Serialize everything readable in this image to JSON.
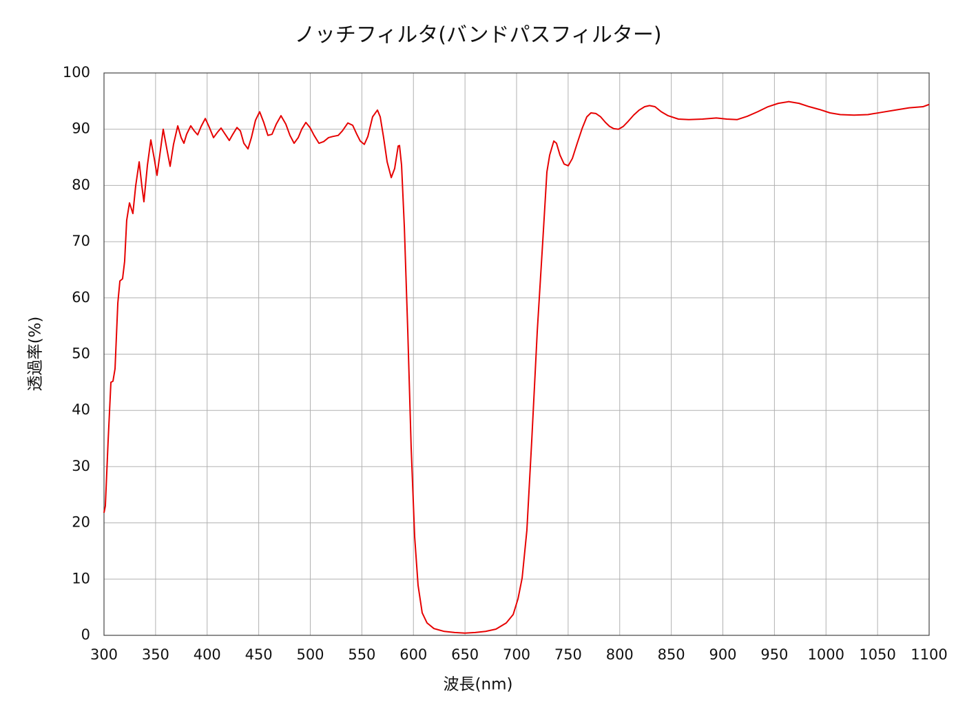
{
  "chart_data": {
    "type": "line",
    "title": "ノッチフィルタ(バンドパスフィルター)",
    "x_label": "波長(nm)",
    "y_label": "透過率(%)",
    "xlim": [
      300,
      1100
    ],
    "ylim": [
      0,
      100
    ],
    "xticks": [
      300,
      350,
      400,
      450,
      500,
      550,
      600,
      650,
      700,
      750,
      800,
      850,
      900,
      950,
      1000,
      1050,
      1100
    ],
    "yticks": [
      0,
      10,
      20,
      30,
      40,
      50,
      60,
      70,
      80,
      90,
      100
    ],
    "grid": true,
    "series": [
      {
        "color": "#e60000",
        "x": [
          300.0,
          301.3,
          304.0,
          306.7,
          308.7,
          310.7,
          313.4,
          315.4,
          318.0,
          320.0,
          322.0,
          324.7,
          328.0,
          330.7,
          334.1,
          336.7,
          338.7,
          342.1,
          345.4,
          348.7,
          351.4,
          354.1,
          357.4,
          361.4,
          364.1,
          367.4,
          371.5,
          374.8,
          377.5,
          380.1,
          384.1,
          387.5,
          390.8,
          394.2,
          398.2,
          402.2,
          406.2,
          410.2,
          413.5,
          417.5,
          421.5,
          424.9,
          428.9,
          432.2,
          435.6,
          439.6,
          442.9,
          446.9,
          450.9,
          454.9,
          458.9,
          462.9,
          467.0,
          471.6,
          476.3,
          480.3,
          484.3,
          488.3,
          491.7,
          495.7,
          499.7,
          503.7,
          508.4,
          513.0,
          517.7,
          521.7,
          527.1,
          531.1,
          536.4,
          541.1,
          545.1,
          548.4,
          552.4,
          555.8,
          560.4,
          565.1,
          567.8,
          571.1,
          574.5,
          578.5,
          581.8,
          585.2,
          586.5,
          588.5,
          591.2,
          594.5,
          597.8,
          601.2,
          604.5,
          608.5,
          613.2,
          619.9,
          629.9,
          639.9,
          649.9,
          660.0,
          670.0,
          680.0,
          690.0,
          696.7,
          701.4,
          705.4,
          710.0,
          714.7,
          720.1,
          725.4,
          729.4,
          732.1,
          736.1,
          738.7,
          742.1,
          746.1,
          750.1,
          754.1,
          758.8,
          763.5,
          768.1,
          772.1,
          776.8,
          781.5,
          786.2,
          790.2,
          794.2,
          798.8,
          803.5,
          808.2,
          813.5,
          818.9,
          824.2,
          828.9,
          834.2,
          840.3,
          846.9,
          856.9,
          867.0,
          880.3,
          893.7,
          903.7,
          913.7,
          923.7,
          933.7,
          943.8,
          953.8,
          963.8,
          973.8,
          983.8,
          993.8,
          1003.9,
          1013.9,
          1027.2,
          1040.6,
          1053.9,
          1067.3,
          1080.7,
          1094.0,
          1100.0
        ],
        "values": [
          21.8,
          23.0,
          34.6,
          45.0,
          45.2,
          47.4,
          59.1,
          63.0,
          63.4,
          66.5,
          73.8,
          76.9,
          75.0,
          79.9,
          84.2,
          79.9,
          77.1,
          83.6,
          88.1,
          84.8,
          81.8,
          85.4,
          90.0,
          86.0,
          83.4,
          87.3,
          90.6,
          88.5,
          87.5,
          89.1,
          90.6,
          89.7,
          89.0,
          90.5,
          91.9,
          90.3,
          88.5,
          89.5,
          90.2,
          89.1,
          88.0,
          89.1,
          90.3,
          89.7,
          87.5,
          86.5,
          88.5,
          91.6,
          93.1,
          91.2,
          88.9,
          89.1,
          90.9,
          92.4,
          90.9,
          88.9,
          87.5,
          88.5,
          90.0,
          91.2,
          90.3,
          88.9,
          87.5,
          87.8,
          88.5,
          88.7,
          88.9,
          89.7,
          91.1,
          90.7,
          89.1,
          87.9,
          87.3,
          88.7,
          92.2,
          93.4,
          92.2,
          88.5,
          84.2,
          81.4,
          83.0,
          87.0,
          87.1,
          83.6,
          72.6,
          54.2,
          33.4,
          17.5,
          8.9,
          4.0,
          2.2,
          1.2,
          0.7,
          0.5,
          0.4,
          0.5,
          0.7,
          1.1,
          2.2,
          3.7,
          6.5,
          10.2,
          18.7,
          34.6,
          54.2,
          70.1,
          82.4,
          85.4,
          87.9,
          87.5,
          85.4,
          83.8,
          83.5,
          84.8,
          87.5,
          90.1,
          92.2,
          92.9,
          92.8,
          92.2,
          91.2,
          90.5,
          90.1,
          90.0,
          90.5,
          91.4,
          92.5,
          93.4,
          94.0,
          94.2,
          94.0,
          93.1,
          92.4,
          91.8,
          91.7,
          91.8,
          92.0,
          91.8,
          91.7,
          92.3,
          93.1,
          94.0,
          94.6,
          94.9,
          94.6,
          94.0,
          93.5,
          92.9,
          92.6,
          92.5,
          92.6,
          93.0,
          93.4,
          93.8,
          94.0,
          94.4
        ]
      }
    ]
  }
}
